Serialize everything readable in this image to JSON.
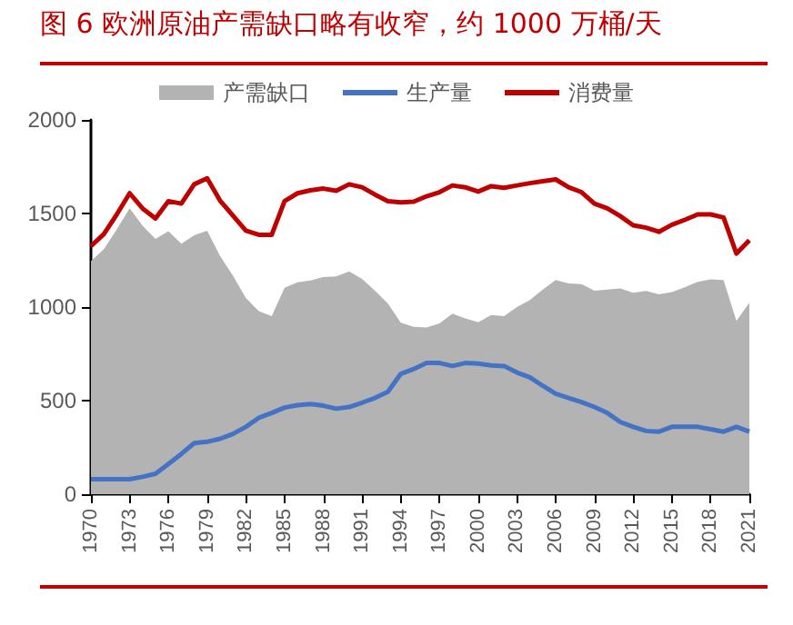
{
  "chart_data": {
    "type": "line",
    "title": "图 6 欧洲原油产需缺口略有收窄，约 1000 万桶/天",
    "x": [
      1970,
      1971,
      1972,
      1973,
      1974,
      1975,
      1976,
      1977,
      1978,
      1979,
      1980,
      1981,
      1982,
      1983,
      1984,
      1985,
      1986,
      1987,
      1988,
      1989,
      1990,
      1991,
      1992,
      1993,
      1994,
      1995,
      1996,
      1997,
      1998,
      1999,
      2000,
      2001,
      2002,
      2003,
      2004,
      2005,
      2006,
      2007,
      2008,
      2009,
      2010,
      2011,
      2012,
      2013,
      2014,
      2015,
      2016,
      2017,
      2018,
      2019,
      2020,
      2021
    ],
    "series": [
      {
        "name": "产需缺口",
        "type": "area",
        "color": "#b3b3b3",
        "values": [
          1245,
          1310,
          1415,
          1528,
          1434,
          1364,
          1405,
          1338,
          1383,
          1408,
          1273,
          1167,
          1048,
          978,
          952,
          1103,
          1132,
          1142,
          1160,
          1164,
          1190,
          1151,
          1087,
          1019,
          916,
          894,
          891,
          913,
          965,
          939,
          919,
          958,
          952,
          1000,
          1038,
          1093,
          1145,
          1126,
          1122,
          1087,
          1093,
          1100,
          1077,
          1086,
          1068,
          1080,
          1106,
          1135,
          1148,
          1145,
          926,
          1023
        ]
      },
      {
        "name": "生产量",
        "color": "#4472c4",
        "values": [
          80,
          80,
          80,
          80,
          93,
          109,
          161,
          215,
          273,
          280,
          296,
          322,
          360,
          408,
          434,
          463,
          476,
          482,
          473,
          457,
          466,
          489,
          514,
          547,
          643,
          669,
          701,
          701,
          685,
          701,
          698,
          688,
          685,
          650,
          624,
          579,
          537,
          514,
          492,
          466,
          434,
          386,
          360,
          338,
          334,
          360,
          360,
          360,
          347,
          334,
          360,
          334
        ]
      },
      {
        "name": "消费量",
        "color": "#c00000",
        "values": [
          1325,
          1390,
          1495,
          1608,
          1527,
          1473,
          1566,
          1553,
          1656,
          1688,
          1569,
          1489,
          1408,
          1386,
          1386,
          1566,
          1608,
          1624,
          1633,
          1621,
          1656,
          1640,
          1601,
          1566,
          1559,
          1563,
          1592,
          1614,
          1650,
          1640,
          1617,
          1646,
          1637,
          1650,
          1662,
          1672,
          1682,
          1640,
          1614,
          1553,
          1527,
          1486,
          1437,
          1424,
          1402,
          1440,
          1466,
          1495,
          1495,
          1479,
          1286,
          1357
        ]
      }
    ],
    "xlim": [
      1970,
      2021
    ],
    "xticks": [
      1970,
      1973,
      1976,
      1979,
      1982,
      1985,
      1988,
      1991,
      1994,
      1997,
      2000,
      2003,
      2006,
      2009,
      2012,
      2015,
      2018,
      2021
    ],
    "ylim": [
      0,
      2000
    ],
    "yticks": [
      0,
      500,
      1000,
      1500,
      2000
    ],
    "grid": false,
    "legend": "top",
    "marker": "none",
    "line_style": "solid"
  }
}
